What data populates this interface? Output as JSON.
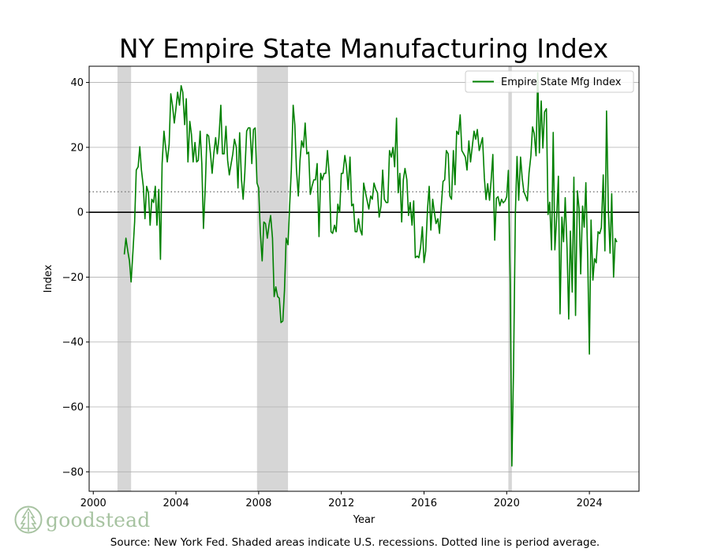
{
  "chart_data": {
    "type": "line",
    "title": "NY Empire State Manufacturing Index",
    "xlabel": "Year",
    "ylabel": "Index",
    "xlim": [
      1999.8,
      2026.4
    ],
    "ylim": [
      -86,
      45
    ],
    "xticks": [
      2000,
      2004,
      2008,
      2012,
      2016,
      2020,
      2024
    ],
    "yticks": [
      -80,
      -60,
      -40,
      -20,
      0,
      20,
      40
    ],
    "grid": "horizontal",
    "legend": "top-right",
    "average": 6.3,
    "recessions": [
      [
        2001.17,
        2001.83
      ],
      [
        2007.92,
        2009.42
      ],
      [
        2020.08,
        2020.25
      ]
    ],
    "series": [
      {
        "name": "Empire State Mfg Index",
        "color": "#008000",
        "points": [
          [
            2001.5,
            -13
          ],
          [
            2001.58,
            -8
          ],
          [
            2001.67,
            -12
          ],
          [
            2001.75,
            -15
          ],
          [
            2001.83,
            -21.5
          ],
          [
            2001.92,
            -12
          ],
          [
            2002.0,
            -3
          ],
          [
            2002.08,
            13
          ],
          [
            2002.17,
            14
          ],
          [
            2002.25,
            20.2
          ],
          [
            2002.33,
            13
          ],
          [
            2002.42,
            8
          ],
          [
            2002.5,
            -2
          ],
          [
            2002.58,
            8
          ],
          [
            2002.67,
            6
          ],
          [
            2002.75,
            -4
          ],
          [
            2002.83,
            4
          ],
          [
            2002.92,
            3
          ],
          [
            2003.0,
            8
          ],
          [
            2003.08,
            -4
          ],
          [
            2003.17,
            7
          ],
          [
            2003.25,
            -14.5
          ],
          [
            2003.33,
            15
          ],
          [
            2003.42,
            25
          ],
          [
            2003.5,
            20
          ],
          [
            2003.58,
            15.5
          ],
          [
            2003.67,
            21
          ],
          [
            2003.75,
            36.5
          ],
          [
            2003.83,
            33
          ],
          [
            2003.92,
            27.5
          ],
          [
            2004.0,
            32
          ],
          [
            2004.08,
            37
          ],
          [
            2004.17,
            33
          ],
          [
            2004.25,
            39
          ],
          [
            2004.33,
            37
          ],
          [
            2004.42,
            27
          ],
          [
            2004.5,
            35
          ],
          [
            2004.58,
            15.5
          ],
          [
            2004.67,
            28
          ],
          [
            2004.75,
            24
          ],
          [
            2004.83,
            15.5
          ],
          [
            2004.92,
            21.5
          ],
          [
            2005.0,
            15.5
          ],
          [
            2005.08,
            16
          ],
          [
            2005.17,
            25
          ],
          [
            2005.25,
            15
          ],
          [
            2005.33,
            -5
          ],
          [
            2005.42,
            8
          ],
          [
            2005.5,
            24
          ],
          [
            2005.58,
            23.5
          ],
          [
            2005.67,
            18
          ],
          [
            2005.75,
            12
          ],
          [
            2005.83,
            18
          ],
          [
            2005.92,
            23
          ],
          [
            2006.0,
            18
          ],
          [
            2006.08,
            23
          ],
          [
            2006.17,
            33
          ],
          [
            2006.25,
            18
          ],
          [
            2006.33,
            18
          ],
          [
            2006.42,
            26.5
          ],
          [
            2006.5,
            16
          ],
          [
            2006.58,
            11.5
          ],
          [
            2006.67,
            15
          ],
          [
            2006.75,
            18
          ],
          [
            2006.83,
            22.5
          ],
          [
            2006.92,
            20
          ],
          [
            2007.0,
            7.5
          ],
          [
            2007.08,
            24.5
          ],
          [
            2007.17,
            10
          ],
          [
            2007.25,
            4
          ],
          [
            2007.33,
            12
          ],
          [
            2007.42,
            25
          ],
          [
            2007.5,
            26
          ],
          [
            2007.58,
            26
          ],
          [
            2007.67,
            15
          ],
          [
            2007.75,
            25.5
          ],
          [
            2007.83,
            26
          ],
          [
            2007.92,
            9
          ],
          [
            2008.0,
            7.5
          ],
          [
            2008.08,
            -6
          ],
          [
            2008.17,
            -15
          ],
          [
            2008.25,
            -3
          ],
          [
            2008.33,
            -3.5
          ],
          [
            2008.42,
            -8
          ],
          [
            2008.5,
            -4
          ],
          [
            2008.58,
            -1
          ],
          [
            2008.67,
            -8
          ],
          [
            2008.75,
            -26
          ],
          [
            2008.83,
            -23
          ],
          [
            2008.92,
            -26
          ],
          [
            2009.0,
            -26.5
          ],
          [
            2009.08,
            -34
          ],
          [
            2009.17,
            -33.5
          ],
          [
            2009.25,
            -24
          ],
          [
            2009.33,
            -8
          ],
          [
            2009.42,
            -10
          ],
          [
            2009.5,
            2
          ],
          [
            2009.58,
            13
          ],
          [
            2009.67,
            33
          ],
          [
            2009.75,
            27
          ],
          [
            2009.83,
            13
          ],
          [
            2009.92,
            5
          ],
          [
            2010.0,
            16
          ],
          [
            2010.08,
            22
          ],
          [
            2010.17,
            20
          ],
          [
            2010.25,
            27.5
          ],
          [
            2010.33,
            18
          ],
          [
            2010.42,
            18.5
          ],
          [
            2010.5,
            5.5
          ],
          [
            2010.58,
            8
          ],
          [
            2010.67,
            10
          ],
          [
            2010.75,
            10
          ],
          [
            2010.83,
            15
          ],
          [
            2010.92,
            -7.5
          ],
          [
            2011.0,
            12
          ],
          [
            2011.08,
            10
          ],
          [
            2011.17,
            12
          ],
          [
            2011.25,
            12
          ],
          [
            2011.33,
            19
          ],
          [
            2011.42,
            11
          ],
          [
            2011.5,
            -6
          ],
          [
            2011.58,
            -6.5
          ],
          [
            2011.67,
            -4
          ],
          [
            2011.75,
            -6
          ],
          [
            2011.83,
            2.5
          ],
          [
            2011.92,
            0
          ],
          [
            2012.0,
            12
          ],
          [
            2012.08,
            12
          ],
          [
            2012.17,
            17.5
          ],
          [
            2012.25,
            14
          ],
          [
            2012.33,
            7
          ],
          [
            2012.42,
            17
          ],
          [
            2012.5,
            2
          ],
          [
            2012.58,
            2.5
          ],
          [
            2012.67,
            -6
          ],
          [
            2012.75,
            -6
          ],
          [
            2012.83,
            -2
          ],
          [
            2012.92,
            -5.5
          ],
          [
            2013.0,
            -7
          ],
          [
            2013.08,
            9
          ],
          [
            2013.17,
            6
          ],
          [
            2013.25,
            3.5
          ],
          [
            2013.33,
            1
          ],
          [
            2013.42,
            5
          ],
          [
            2013.5,
            4
          ],
          [
            2013.58,
            9
          ],
          [
            2013.67,
            7
          ],
          [
            2013.75,
            6
          ],
          [
            2013.83,
            -1.5
          ],
          [
            2013.92,
            2
          ],
          [
            2014.0,
            13
          ],
          [
            2014.08,
            4
          ],
          [
            2014.17,
            3
          ],
          [
            2014.25,
            3
          ],
          [
            2014.33,
            19
          ],
          [
            2014.42,
            17
          ],
          [
            2014.5,
            20
          ],
          [
            2014.58,
            14
          ],
          [
            2014.67,
            29
          ],
          [
            2014.75,
            6
          ],
          [
            2014.83,
            12
          ],
          [
            2014.92,
            -3
          ],
          [
            2015.0,
            10
          ],
          [
            2015.08,
            13.5
          ],
          [
            2015.17,
            10
          ],
          [
            2015.25,
            -1
          ],
          [
            2015.33,
            3
          ],
          [
            2015.42,
            -4
          ],
          [
            2015.5,
            3.5
          ],
          [
            2015.58,
            -14
          ],
          [
            2015.67,
            -13.5
          ],
          [
            2015.75,
            -14
          ],
          [
            2015.83,
            -11
          ],
          [
            2015.92,
            -4.5
          ],
          [
            2016.0,
            -15.5
          ],
          [
            2016.08,
            -12
          ],
          [
            2016.17,
            1
          ],
          [
            2016.25,
            8
          ],
          [
            2016.33,
            -5.5
          ],
          [
            2016.42,
            4
          ],
          [
            2016.5,
            0
          ],
          [
            2016.58,
            -3.5
          ],
          [
            2016.67,
            -2
          ],
          [
            2016.75,
            -6.5
          ],
          [
            2016.83,
            1.5
          ],
          [
            2016.92,
            9.5
          ],
          [
            2017.0,
            10
          ],
          [
            2017.08,
            19
          ],
          [
            2017.17,
            18
          ],
          [
            2017.25,
            5
          ],
          [
            2017.33,
            4
          ],
          [
            2017.42,
            19
          ],
          [
            2017.5,
            8.5
          ],
          [
            2017.58,
            25
          ],
          [
            2017.67,
            24
          ],
          [
            2017.75,
            30
          ],
          [
            2017.83,
            19
          ],
          [
            2017.92,
            18
          ],
          [
            2018.0,
            17
          ],
          [
            2018.08,
            13
          ],
          [
            2018.17,
            22
          ],
          [
            2018.25,
            15.5
          ],
          [
            2018.33,
            20
          ],
          [
            2018.42,
            25
          ],
          [
            2018.5,
            22.5
          ],
          [
            2018.58,
            25.5
          ],
          [
            2018.67,
            19
          ],
          [
            2018.75,
            21
          ],
          [
            2018.83,
            23
          ],
          [
            2018.92,
            10.5
          ],
          [
            2019.0,
            3.9
          ],
          [
            2019.08,
            8.8
          ],
          [
            2019.17,
            3.7
          ],
          [
            2019.25,
            10.1
          ],
          [
            2019.33,
            17.8
          ],
          [
            2019.42,
            -8.6
          ],
          [
            2019.5,
            4.3
          ],
          [
            2019.58,
            4.8
          ],
          [
            2019.67,
            2
          ],
          [
            2019.75,
            4
          ],
          [
            2019.83,
            2.9
          ],
          [
            2019.92,
            3.5
          ],
          [
            2020.0,
            4.8
          ],
          [
            2020.08,
            12.9
          ],
          [
            2020.17,
            -21.5
          ],
          [
            2020.25,
            -78.2
          ],
          [
            2020.33,
            -48.5
          ],
          [
            2020.42,
            -0.2
          ],
          [
            2020.5,
            17.2
          ],
          [
            2020.58,
            3.7
          ],
          [
            2020.67,
            17
          ],
          [
            2020.75,
            10.5
          ],
          [
            2020.83,
            6.3
          ],
          [
            2020.92,
            4.9
          ],
          [
            2021.0,
            3.5
          ],
          [
            2021.08,
            12.1
          ],
          [
            2021.17,
            17.4
          ],
          [
            2021.25,
            26.3
          ],
          [
            2021.33,
            24.3
          ],
          [
            2021.42,
            17.4
          ],
          [
            2021.5,
            43
          ],
          [
            2021.58,
            18.3
          ],
          [
            2021.67,
            34.3
          ],
          [
            2021.75,
            19.8
          ],
          [
            2021.83,
            30.9
          ],
          [
            2021.92,
            31.9
          ],
          [
            2022.0,
            -0.7
          ],
          [
            2022.08,
            3.1
          ],
          [
            2022.17,
            -11.6
          ],
          [
            2022.25,
            24.6
          ],
          [
            2022.33,
            -11.6
          ],
          [
            2022.42,
            -1.2
          ],
          [
            2022.5,
            11.1
          ],
          [
            2022.58,
            -31.3
          ],
          [
            2022.67,
            -1.5
          ],
          [
            2022.75,
            -9.1
          ],
          [
            2022.83,
            4.5
          ],
          [
            2022.92,
            -11.2
          ],
          [
            2023.0,
            -32.9
          ],
          [
            2023.08,
            -5.8
          ],
          [
            2023.17,
            -24.6
          ],
          [
            2023.25,
            10.8
          ],
          [
            2023.33,
            -31.8
          ],
          [
            2023.42,
            6.6
          ],
          [
            2023.5,
            1.1
          ],
          [
            2023.58,
            -19
          ],
          [
            2023.67,
            1.9
          ],
          [
            2023.75,
            -4.6
          ],
          [
            2023.83,
            9.1
          ],
          [
            2023.92,
            -14.5
          ],
          [
            2024.0,
            -43.7
          ],
          [
            2024.08,
            -2.4
          ],
          [
            2024.17,
            -20.9
          ],
          [
            2024.25,
            -14.3
          ],
          [
            2024.33,
            -15.6
          ],
          [
            2024.42,
            -6
          ],
          [
            2024.5,
            -6.6
          ],
          [
            2024.58,
            -4.7
          ],
          [
            2024.67,
            11.5
          ],
          [
            2024.75,
            -11.9
          ],
          [
            2024.83,
            31.2
          ],
          [
            2024.92,
            0.2
          ],
          [
            2025.0,
            -12.6
          ],
          [
            2025.08,
            5.7
          ],
          [
            2025.17,
            -20
          ],
          [
            2025.25,
            -8.1
          ],
          [
            2025.33,
            -9.2
          ]
        ]
      }
    ]
  },
  "caption": "Source: New York Fed. Shaded areas indicate U.S. recessions. Dotted line is period average.",
  "logo": {
    "text": "goodstead",
    "color": "#a7c3a1"
  }
}
